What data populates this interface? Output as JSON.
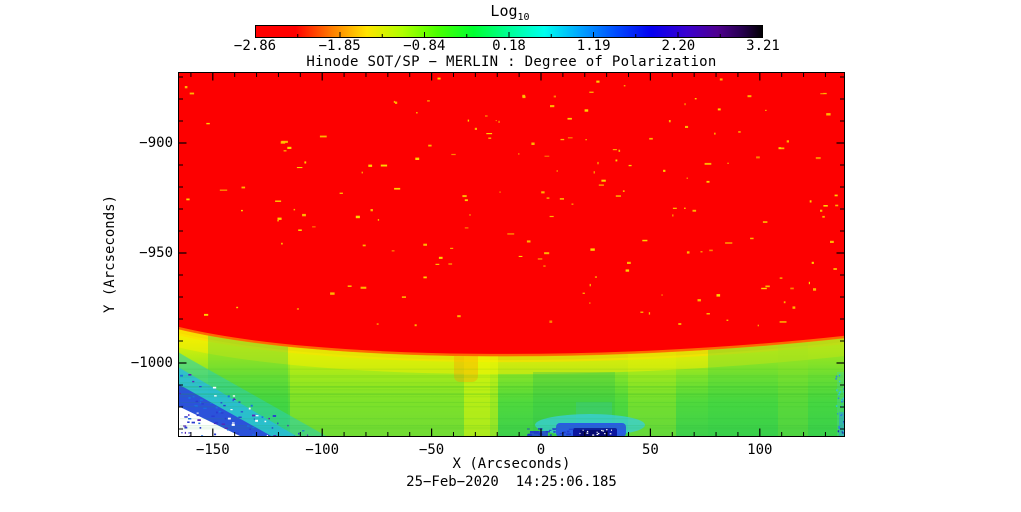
{
  "figure": {
    "title": "Hinode SOT/SP − MERLIN : Degree of Polarization",
    "xlabel": "X (Arcseconds)",
    "ylabel": "Y (Arcseconds)",
    "caption": "25−Feb−2020  14:25:06.185",
    "background": "#ffffff"
  },
  "colorbar": {
    "title": "Log",
    "title_sub": "10",
    "tick_labels": [
      "−2.86",
      "−1.85",
      "−0.84",
      "0.18",
      "1.19",
      "2.20",
      "3.21"
    ],
    "gradient_stops": [
      [
        "#ff0000",
        0
      ],
      [
        "#ff0000",
        8
      ],
      [
        "#ff7b00",
        15
      ],
      [
        "#ffe400",
        22
      ],
      [
        "#b0ff00",
        29
      ],
      [
        "#49ff00",
        36
      ],
      [
        "#00ff30",
        43
      ],
      [
        "#00ff96",
        50
      ],
      [
        "#00ffee",
        57
      ],
      [
        "#00a4ff",
        64
      ],
      [
        "#004cff",
        71
      ],
      [
        "#0500f0",
        78
      ],
      [
        "#3a00d0",
        85
      ],
      [
        "#4f0090",
        91
      ],
      [
        "#26004e",
        96
      ],
      [
        "#000000",
        100
      ]
    ]
  },
  "axes": {
    "xtick_labels": [
      "−150",
      "−100",
      "−50",
      "0",
      "50",
      "100"
    ],
    "ytick_labels": [
      "−900",
      "−950",
      "−1000"
    ]
  },
  "chart_data": {
    "type": "heatmap",
    "title": "Hinode SOT/SP − MERLIN : Degree of Polarization",
    "xlabel": "X (Arcseconds)",
    "ylabel": "Y (Arcseconds)",
    "xlim": [
      -166,
      139
    ],
    "ylim": [
      -1034,
      -868
    ],
    "xticks": [
      -150,
      -100,
      -50,
      0,
      50,
      100
    ],
    "yticks": [
      -900,
      -950,
      -1000
    ],
    "minor_tick_step_arcsec": 10,
    "grid": false,
    "colorbar": {
      "label": "Log10",
      "orientation": "horizontal",
      "position": "top",
      "min": -2.86,
      "max": 3.21,
      "tick_values": [
        -2.86,
        -1.85,
        -0.84,
        0.18,
        1.19,
        2.2,
        3.21
      ],
      "colormap": "rainbow: red (low) -> orange -> yellow -> green -> cyan -> blue -> purple -> black (high)"
    },
    "timestamp": "25-Feb-2020 14:25:06.185",
    "regions": [
      {
        "name": "solar-disk",
        "approx_log10_value": -2.86,
        "color": "#fd0000",
        "description": "On-disk area above the limb: saturated red (minimum of color scale) with sparse small yellow/orange speckles scattered throughout."
      },
      {
        "name": "limb-transition",
        "approx_log10_value": -1.5,
        "colors": [
          "#ff8a00",
          "#ffe400",
          "#d8ee00"
        ],
        "description": "Curved solar limb arc; thin orange then yellow band hugging the red disk edge, plus a faint orange plume below the limb near X = -30 arcsec."
      },
      {
        "name": "off-limb",
        "approx_log10_value": -0.6,
        "colors": [
          "#c9ec0c",
          "#45d83c"
        ],
        "description": "Yellow-green grading to green below the limb with subtle vertical streak structure and horizontal scan-line texture."
      },
      {
        "name": "bottom-left-corner",
        "approx_log10_value": 2.0,
        "colors": [
          "#27b8e6",
          "#2b46dc",
          "#ffffff"
        ],
        "description": "Cyan-to-blue gradient wedge with white no-data triangle full of dark blue/purple speckle noise at the lower-left corner."
      },
      {
        "name": "bottom-center-patch",
        "approx_log10_value": 2.5,
        "colors": [
          "#38cfdc",
          "#2850e8",
          "#0d17a0"
        ],
        "description": "Dark navy patch with white speckles and cyan fringe at the bottom edge near X = 15 to 35 arcsec."
      },
      {
        "name": "right-edge-strip",
        "approx_log10_value": 1.5,
        "colors": [
          "#49d6a0",
          "#2e9fe0"
        ],
        "description": "Thin cyan/blue noisy column along the right edge near the bottom corner."
      }
    ],
    "limb_points_arcsec": [
      [
        -166,
        -985
      ],
      [
        -100,
        -991
      ],
      [
        -50,
        -996
      ],
      [
        0,
        -995
      ],
      [
        70,
        -992
      ],
      [
        139,
        -989
      ]
    ]
  }
}
